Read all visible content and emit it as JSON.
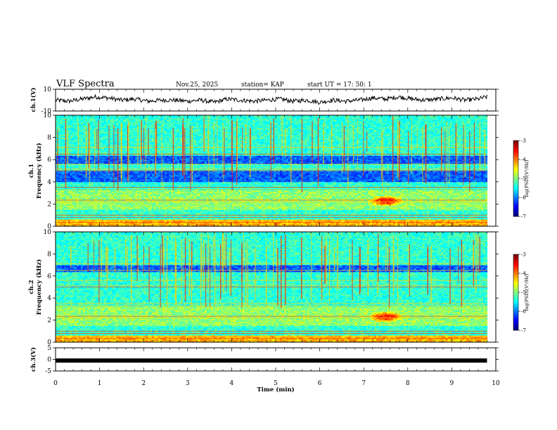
{
  "header": {
    "title": "VLF Spectra",
    "date": "Nov.25, 2025",
    "station": "station= KAP",
    "start": "start  UT =   17: 50: 1"
  },
  "chart_data": [
    {
      "id": "ch1-voltage",
      "type": "line",
      "ylabel": "ch.1(V)",
      "ylim": [
        -10,
        10
      ],
      "yticks": [
        "10",
        "-10"
      ],
      "xlim": [
        0,
        10
      ],
      "x": [
        0,
        0.3,
        0.6,
        0.9,
        1.2,
        1.5,
        1.8,
        2.1,
        2.4,
        2.7,
        3.0,
        3.3,
        3.6,
        3.9,
        4.2,
        4.5,
        4.8,
        5.1,
        5.4,
        5.7,
        6.0,
        6.3,
        6.6,
        6.9,
        7.2,
        7.5,
        7.8,
        8.1,
        8.4,
        8.7,
        9.0,
        9.3,
        9.6,
        9.8
      ],
      "values": [
        0,
        -1,
        1,
        3,
        2,
        0,
        1,
        -1,
        0,
        0,
        -1,
        0,
        -2,
        1,
        0,
        -1,
        0,
        1,
        -1,
        0,
        -2,
        0,
        -1,
        0,
        2,
        1,
        3,
        1,
        0,
        1,
        2,
        0,
        1,
        3
      ],
      "series_color": "#000000"
    },
    {
      "id": "ch1-spectrogram",
      "type": "heatmap",
      "ylabel": "ch.1",
      "ylabel2": "Frequency  (kHz)",
      "ylim": [
        0,
        10
      ],
      "yticks": [
        "0",
        "2",
        "4",
        "6",
        "8",
        "10"
      ],
      "xlim": [
        0,
        10
      ],
      "colorbar": {
        "label": "log(PSD)(V²/Hz)",
        "range": [
          -7,
          -3
        ],
        "ticks": [
          "-3",
          "-4",
          "-5",
          "-6",
          "-7"
        ]
      },
      "bands_khz": [
        {
          "from": 0.0,
          "to": 0.6,
          "level": "high"
        },
        {
          "from": 0.6,
          "to": 1.5,
          "level": "mid"
        },
        {
          "from": 1.5,
          "to": 3.3,
          "level": "mid-high"
        },
        {
          "from": 3.3,
          "to": 4.0,
          "level": "mid"
        },
        {
          "from": 4.0,
          "to": 5.0,
          "level": "low"
        },
        {
          "from": 5.0,
          "to": 5.6,
          "level": "mid"
        },
        {
          "from": 5.6,
          "to": 6.4,
          "level": "low"
        },
        {
          "from": 6.4,
          "to": 10.0,
          "level": "mid"
        }
      ],
      "hotspot": {
        "t_min": [
          7.1,
          7.9
        ],
        "f_khz": [
          1.8,
          2.8
        ]
      }
    },
    {
      "id": "ch2-spectrogram",
      "type": "heatmap",
      "ylabel": "ch.2",
      "ylabel2": "Frequency  (kHz)",
      "ylim": [
        0,
        10
      ],
      "yticks": [
        "0",
        "2",
        "4",
        "6",
        "8",
        "10"
      ],
      "xlim": [
        0,
        10
      ],
      "colorbar": {
        "label": "log(PSD)(V²/Hz)",
        "range": [
          -7,
          -3
        ],
        "ticks": [
          "-3",
          "-4",
          "-5",
          "-6",
          "-7"
        ]
      },
      "bands_khz": [
        {
          "from": 0.0,
          "to": 0.6,
          "level": "high"
        },
        {
          "from": 0.6,
          "to": 1.5,
          "level": "mid"
        },
        {
          "from": 1.5,
          "to": 3.3,
          "level": "mid-high"
        },
        {
          "from": 3.3,
          "to": 5.0,
          "level": "mid"
        },
        {
          "from": 5.0,
          "to": 6.4,
          "level": "mid"
        },
        {
          "from": 6.4,
          "to": 7.0,
          "level": "low"
        },
        {
          "from": 7.0,
          "to": 10.0,
          "level": "mid"
        }
      ],
      "hotspot": {
        "t_min": [
          7.1,
          7.9
        ],
        "f_khz": [
          1.8,
          2.8
        ]
      }
    },
    {
      "id": "ch3-voltage",
      "type": "line",
      "ylabel": "ch.3(V)",
      "ylim": [
        -5,
        5
      ],
      "yticks": [
        "5",
        "0",
        "-5"
      ],
      "xlim": [
        0,
        10
      ],
      "xlabel": "Time  (min)",
      "xticks": [
        "0",
        "1",
        "2",
        "3",
        "4",
        "5",
        "6",
        "7",
        "8",
        "9",
        "10"
      ],
      "x": [
        0,
        9.8
      ],
      "values": [
        -0.5,
        -0.5
      ],
      "series_color": "#000000"
    }
  ]
}
